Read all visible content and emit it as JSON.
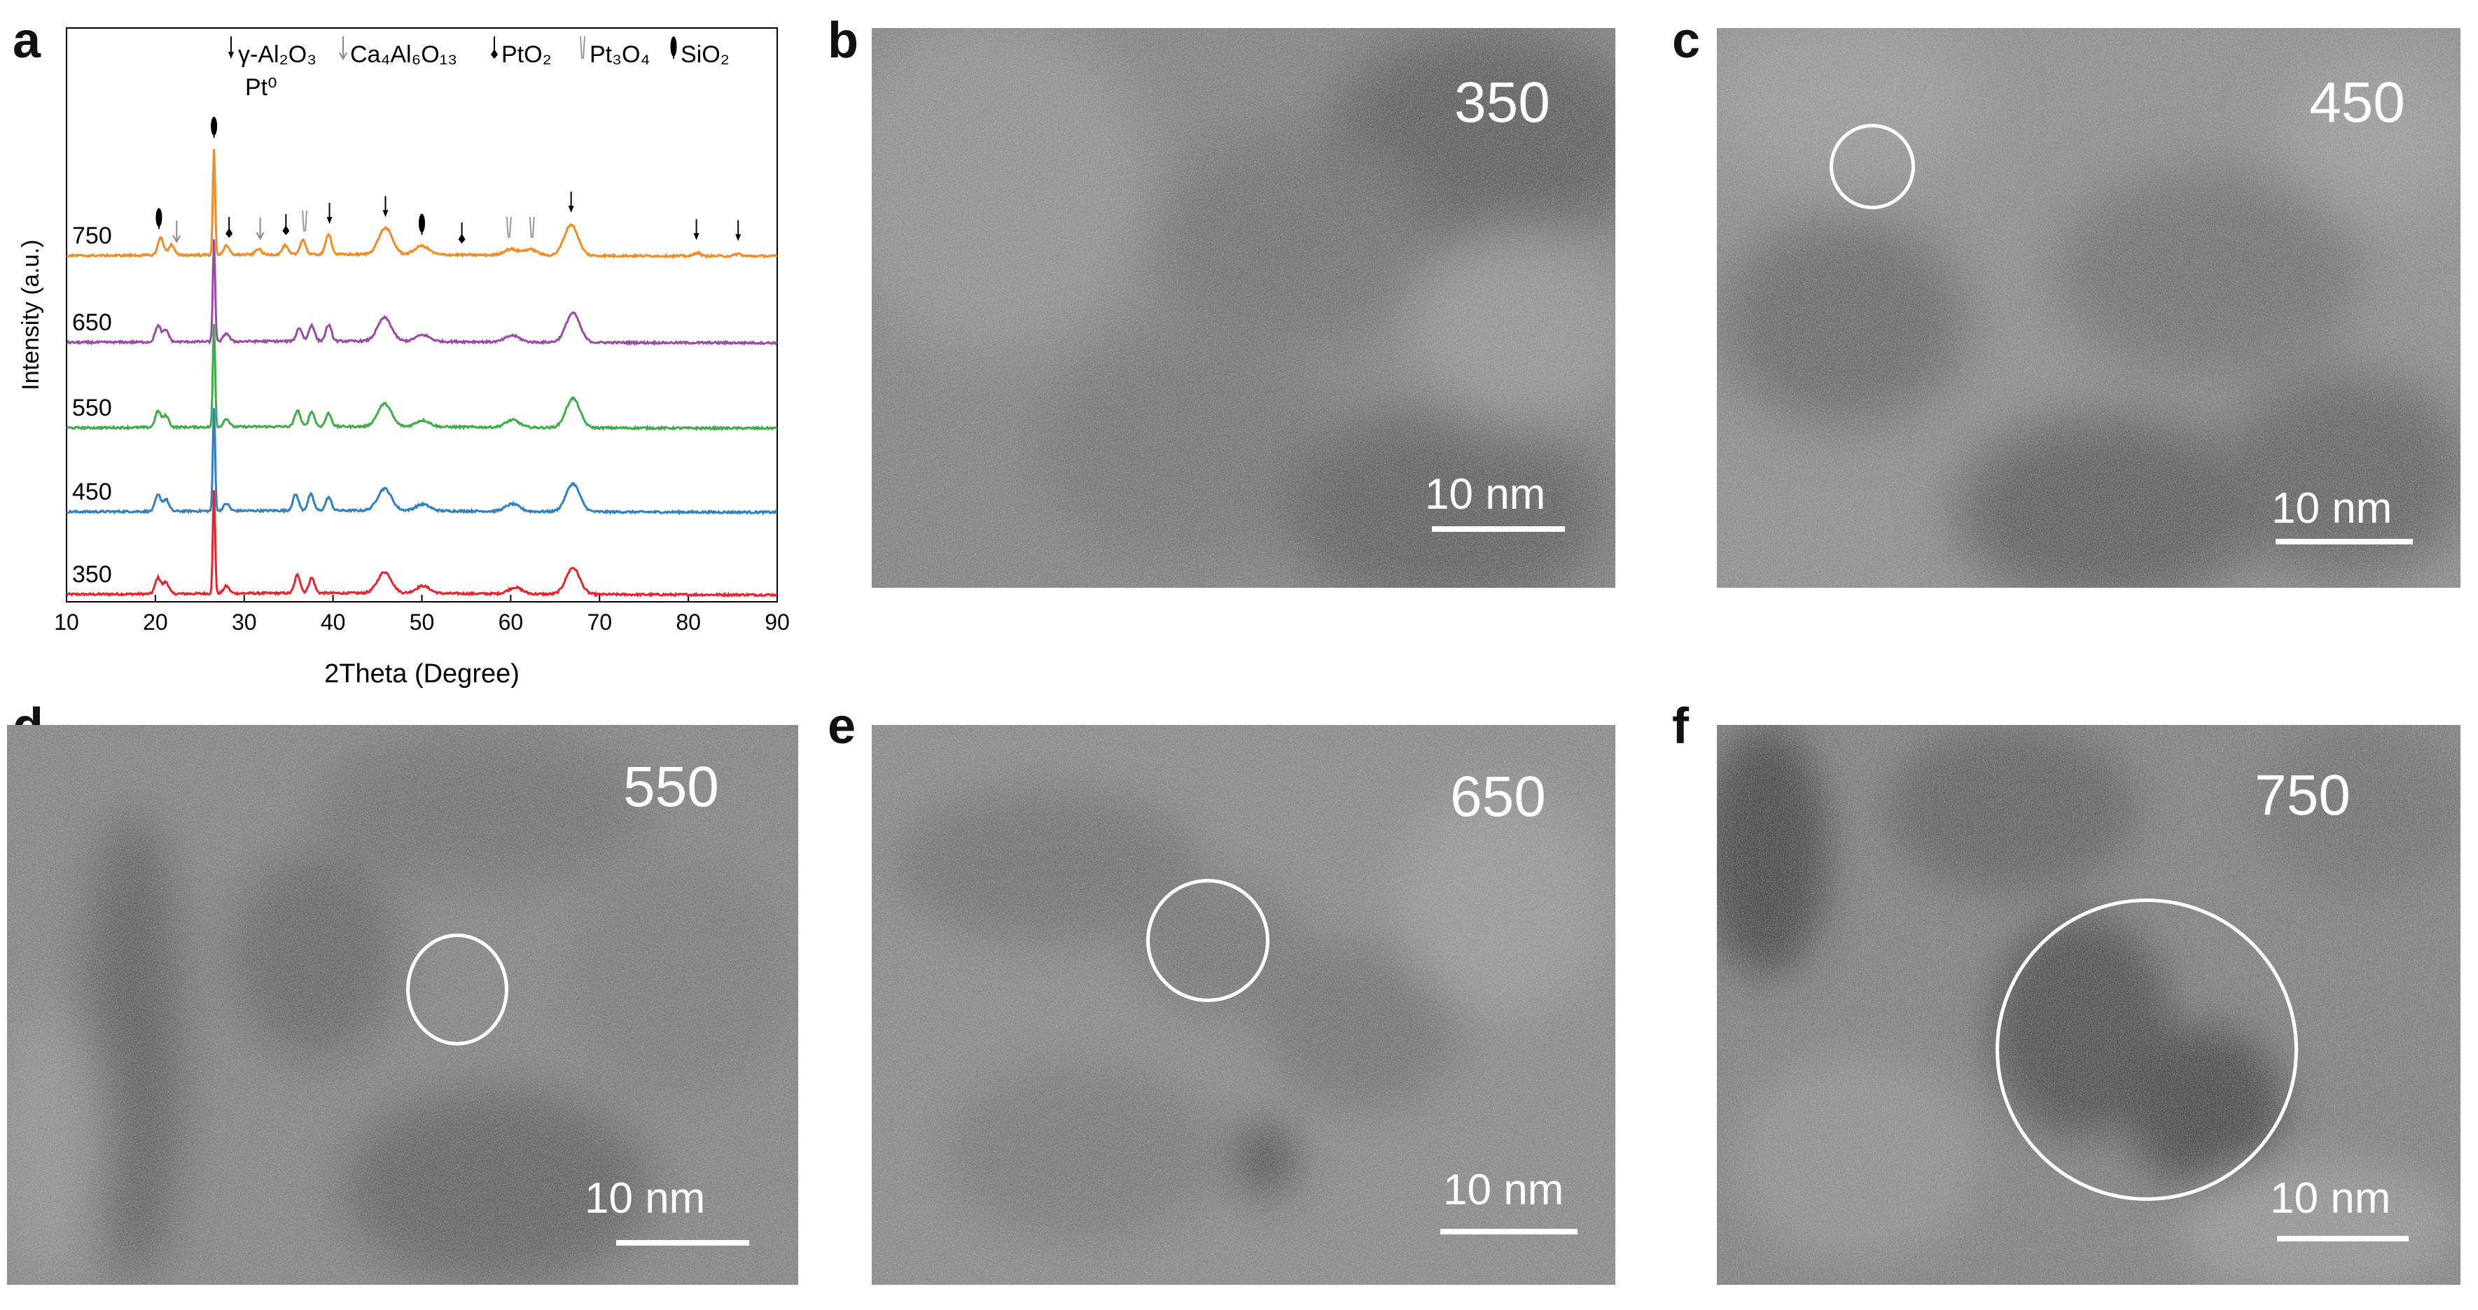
{
  "panel_a": {
    "letter": "a",
    "chart_data": {
      "type": "line",
      "xlabel": "2Theta (Degree)",
      "ylabel": "Intensity (a.u.)",
      "xlim": [
        10,
        90
      ],
      "xticks": [
        10,
        20,
        30,
        40,
        50,
        60,
        70,
        80,
        90
      ],
      "grid": false,
      "legend_position": "top",
      "legend": [
        {
          "symbol": "narrow-filled-arrow",
          "text": "γ-Al₂O₃"
        },
        {
          "symbol": "open-arrow",
          "text": "Ca₄Al₆O₁₃"
        },
        {
          "symbol": "diamond-arrow",
          "text": "PtO₂"
        },
        {
          "symbol": "double-line-arrow",
          "text": "Pt₃O₄"
        },
        {
          "symbol": "drop-arrow",
          "text": "SiO₂"
        },
        {
          "symbol": "none",
          "text": "Pt⁰"
        }
      ],
      "series": [
        {
          "name": "350",
          "color": "#e8232b",
          "peaks": [
            [
              20.3,
              0.55
            ],
            [
              21.2,
              0.4
            ],
            [
              26.6,
              3.5
            ],
            [
              28,
              0.25
            ],
            [
              36,
              0.62
            ],
            [
              37.6,
              0.52
            ],
            [
              45.8,
              0.72
            ],
            [
              50.1,
              0.25
            ],
            [
              60.5,
              0.22
            ],
            [
              67,
              0.9
            ]
          ]
        },
        {
          "name": "450",
          "color": "#2e7fc4",
          "peaks": [
            [
              20.3,
              0.55
            ],
            [
              21.2,
              0.4
            ],
            [
              26.6,
              3.5
            ],
            [
              28,
              0.25
            ],
            [
              35.8,
              0.55
            ],
            [
              37.5,
              0.55
            ],
            [
              39.5,
              0.45
            ],
            [
              45.8,
              0.75
            ],
            [
              50.1,
              0.22
            ],
            [
              60.2,
              0.25
            ],
            [
              67,
              0.95
            ]
          ]
        },
        {
          "name": "550",
          "color": "#3ead48",
          "peaks": [
            [
              20.3,
              0.55
            ],
            [
              21.2,
              0.4
            ],
            [
              26.6,
              3.5
            ],
            [
              28,
              0.28
            ],
            [
              36,
              0.55
            ],
            [
              37.6,
              0.5
            ],
            [
              39.5,
              0.45
            ],
            [
              45.8,
              0.78
            ],
            [
              50.1,
              0.22
            ],
            [
              60.2,
              0.25
            ],
            [
              67,
              1.0
            ]
          ]
        },
        {
          "name": "650",
          "color": "#9b4aa5",
          "peaks": [
            [
              20.3,
              0.55
            ],
            [
              21.2,
              0.4
            ],
            [
              26.6,
              3.5
            ],
            [
              28,
              0.28
            ],
            [
              36.2,
              0.45
            ],
            [
              37.6,
              0.55
            ],
            [
              39.5,
              0.55
            ],
            [
              45.8,
              0.8
            ],
            [
              50.1,
              0.22
            ],
            [
              60.2,
              0.22
            ],
            [
              67,
              1.0
            ]
          ]
        },
        {
          "name": "750",
          "color": "#f58a1f",
          "peaks": [
            [
              20.6,
              0.6
            ],
            [
              21.8,
              0.35
            ],
            [
              26.6,
              3.6
            ],
            [
              28,
              0.3
            ],
            [
              31.6,
              0.2
            ],
            [
              34.6,
              0.3
            ],
            [
              36.6,
              0.5
            ],
            [
              39.5,
              0.7
            ],
            [
              45.9,
              0.9
            ],
            [
              50,
              0.3
            ],
            [
              60,
              0.2
            ],
            [
              62.2,
              0.2
            ],
            [
              66.8,
              1.05
            ],
            [
              81,
              0.12
            ],
            [
              85.6,
              0.08
            ]
          ]
        }
      ],
      "annotations": [
        {
          "x": 20.4,
          "symbol": "drop-arrow"
        },
        {
          "x": 22.4,
          "symbol": "open-arrow"
        },
        {
          "x": 26.6,
          "symbol": "drop-arrow"
        },
        {
          "x": 28.3,
          "symbol": "diamond-arrow"
        },
        {
          "x": 31.8,
          "symbol": "open-arrow"
        },
        {
          "x": 34.7,
          "symbol": "diamond-arrow"
        },
        {
          "x": 36.8,
          "symbol": "double-line-arrow"
        },
        {
          "x": 39.6,
          "symbol": "narrow-filled-arrow"
        },
        {
          "x": 45.9,
          "symbol": "narrow-filled-arrow"
        },
        {
          "x": 50.0,
          "symbol": "drop-arrow"
        },
        {
          "x": 54.5,
          "symbol": "diamond-arrow"
        },
        {
          "x": 59.8,
          "symbol": "double-line-arrow"
        },
        {
          "x": 62.4,
          "symbol": "double-line-arrow"
        },
        {
          "x": 66.8,
          "symbol": "narrow-filled-arrow"
        },
        {
          "x": 80.9,
          "symbol": "narrow-filled-arrow"
        },
        {
          "x": 85.6,
          "symbol": "narrow-filled-arrow"
        }
      ]
    }
  },
  "tem_panels": [
    {
      "letter": "b",
      "temperature": "350",
      "scale": "10 nm",
      "circle": false
    },
    {
      "letter": "c",
      "temperature": "450",
      "scale": "10 nm",
      "circle": true
    },
    {
      "letter": "d",
      "temperature": "550",
      "scale": "10 nm",
      "circle": true
    },
    {
      "letter": "e",
      "temperature": "650",
      "scale": "10 nm",
      "circle": true
    },
    {
      "letter": "f",
      "temperature": "750",
      "scale": "10 nm",
      "circle": true
    }
  ]
}
